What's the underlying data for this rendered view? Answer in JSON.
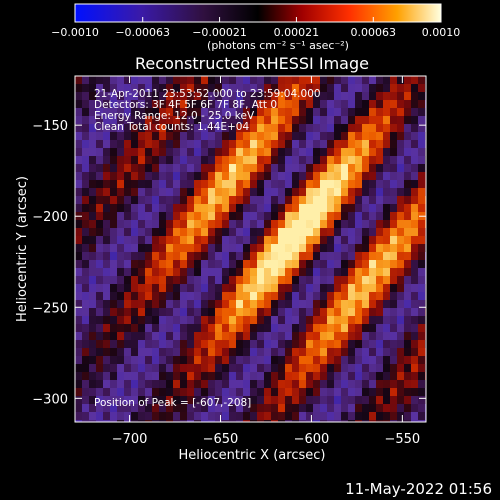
{
  "chart_data": {
    "type": "heatmap",
    "title": "Reconstructed RHESSI Image",
    "xlabel": "Heliocentric X (arcsec)",
    "ylabel": "Heliocentric Y (arcsec)",
    "xlim": [
      -730,
      -537
    ],
    "ylim": [
      -313,
      -123
    ],
    "x_ticks": [
      {
        "value": -700,
        "label": "−700"
      },
      {
        "value": -650,
        "label": "−650"
      },
      {
        "value": -600,
        "label": "−600"
      },
      {
        "value": -550,
        "label": "−550"
      }
    ],
    "y_ticks": [
      {
        "value": -150,
        "label": "−150"
      },
      {
        "value": -200,
        "label": "−200"
      },
      {
        "value": -250,
        "label": "−250"
      },
      {
        "value": -300,
        "label": "−300"
      }
    ],
    "colorbar": {
      "range": [
        -0.001,
        0.001
      ],
      "ticks": [
        {
          "value": -0.001,
          "label": "−0.0010"
        },
        {
          "value": -0.00063,
          "label": "−0.00063"
        },
        {
          "value": -0.00021,
          "label": "−0.00021"
        },
        {
          "value": 0.00021,
          "label": "0.00021"
        },
        {
          "value": 0.00063,
          "label": "0.00063"
        },
        {
          "value": 0.001,
          "label": "0.0010"
        }
      ],
      "unit_label": "(photons cm⁻² s⁻¹ asec⁻²)"
    },
    "annotations": [
      "21-Apr-2011 23:53:52.000 to 23:59:04.000",
      "Detectors: 3F 4F 5F 6F 7F 8F, Att 0",
      "Energy Range: 12.0 - 25.0 keV",
      "Clean     Total counts: 1.44E+04"
    ],
    "peak_label": "Position of Peak = [-607,-208]",
    "peak": {
      "x": -607,
      "y": -208
    }
  },
  "footer_date": "11-May-2022 01:56"
}
